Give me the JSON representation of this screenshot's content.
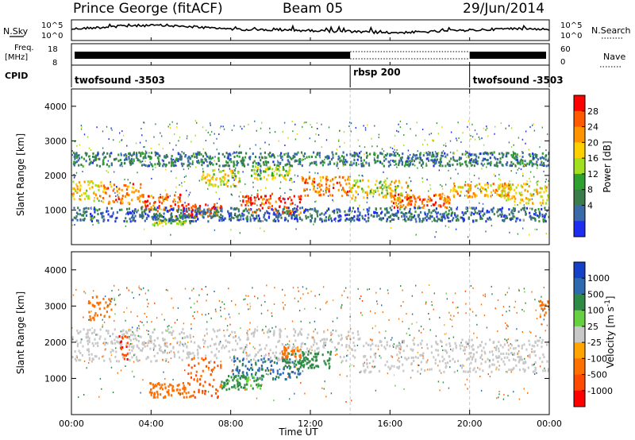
{
  "header": {
    "station": "Prince George (fitACF)",
    "beam": "Beam 05",
    "date": "29/Jun/2014"
  },
  "panels": {
    "nsky": {
      "label": "N.Sky",
      "left_ticks": [
        "10^5",
        "10^0"
      ],
      "right_ticks": [
        "10^5",
        "10^0"
      ],
      "right_label": "N.Search"
    },
    "freq": {
      "label_line1": "Freq.",
      "label_line2": "[MHz]",
      "left_ticks": [
        "18",
        "8"
      ],
      "right_ticks": [
        "60",
        "0"
      ],
      "right_label": "Nave"
    },
    "cpid": {
      "label": "CPID",
      "segments": [
        {
          "label": "twofsound -3503",
          "start": 0,
          "end": 14
        },
        {
          "label": "rbsp 200",
          "start": 14,
          "end": 20
        },
        {
          "label": "twofsound -3503",
          "start": 20,
          "end": 24
        }
      ]
    }
  },
  "colorbars": {
    "power": {
      "label": "Power [dB]",
      "ticks": [
        "28",
        "24",
        "20",
        "16",
        "12",
        "8",
        "4"
      ],
      "colors": [
        "#ff0000",
        "#ff5a00",
        "#ff9400",
        "#ffd000",
        "#a0e020",
        "#2ea030",
        "#3a7d4a",
        "#3a6aa8",
        "#1e2ef0"
      ]
    },
    "velocity": {
      "label": "Velocity [m s^-1]",
      "ticks": [
        "1000",
        "500",
        "100",
        "25",
        "-25",
        "-100",
        "-500",
        "-1000"
      ],
      "colors": [
        "#1540c8",
        "#2d6ab0",
        "#2f8a46",
        "#66d040",
        "#c8c8c8",
        "#ffa400",
        "#ff7000",
        "#ff4a00",
        "#ff0000"
      ]
    }
  },
  "chart_data": {
    "type": "heatmap",
    "xlabel": "Time UT",
    "x_ticks": [
      "00:00",
      "04:00",
      "08:00",
      "12:00",
      "16:00",
      "20:00",
      "00:00"
    ],
    "xlim": [
      0,
      24
    ],
    "ylabel": "Slant Range [km]",
    "y_ticks": [
      "1000",
      "2000",
      "3000",
      "4000"
    ],
    "ylim": [
      0,
      4500
    ],
    "mode_boundaries_hours": [
      14,
      20
    ],
    "power_bands": [
      {
        "t0": 0.0,
        "t1": 1.5,
        "r_lo": 1300,
        "r_hi": 1900,
        "db": 20
      },
      {
        "t0": 1.5,
        "t1": 3.5,
        "r_lo": 1200,
        "r_hi": 1800,
        "db": 24
      },
      {
        "t0": 3.5,
        "t1": 5.5,
        "r_lo": 1000,
        "r_hi": 1500,
        "db": 26
      },
      {
        "t0": 4.0,
        "t1": 6.0,
        "r_lo": 600,
        "r_hi": 900,
        "db": 14
      },
      {
        "t0": 5.5,
        "t1": 7.5,
        "r_lo": 800,
        "r_hi": 1200,
        "db": 28
      },
      {
        "t0": 6.5,
        "t1": 8.5,
        "r_lo": 1700,
        "r_hi": 2200,
        "db": 18
      },
      {
        "t0": 8.5,
        "t1": 11.5,
        "r_lo": 900,
        "r_hi": 1500,
        "db": 28
      },
      {
        "t0": 9.0,
        "t1": 11.0,
        "r_lo": 1900,
        "r_hi": 2300,
        "db": 16
      },
      {
        "t0": 11.5,
        "t1": 14.0,
        "r_lo": 1400,
        "r_hi": 2000,
        "db": 24
      },
      {
        "t0": 14.0,
        "t1": 17.0,
        "r_lo": 1300,
        "r_hi": 1900,
        "db": 18
      },
      {
        "t0": 16.0,
        "t1": 19.0,
        "r_lo": 1100,
        "r_hi": 1500,
        "db": 26
      },
      {
        "t0": 19.0,
        "t1": 22.0,
        "r_lo": 1400,
        "r_hi": 1800,
        "db": 22
      },
      {
        "t0": 21.5,
        "t1": 24.0,
        "r_lo": 1200,
        "r_hi": 1800,
        "db": 20
      },
      {
        "t0": 0.0,
        "t1": 24.0,
        "r_lo": 2300,
        "r_hi": 2700,
        "db": 8
      },
      {
        "t0": 0.0,
        "t1": 24.0,
        "r_lo": 700,
        "r_hi": 1100,
        "db": 6
      }
    ],
    "velocity_bands": [
      {
        "t0": 0.0,
        "t1": 14.5,
        "r_lo": 1500,
        "r_hi": 2400,
        "v": 0
      },
      {
        "t0": 14.5,
        "t1": 24.0,
        "r_lo": 1200,
        "r_hi": 2100,
        "v": 0
      },
      {
        "t0": 2.3,
        "t1": 2.8,
        "r_lo": 1500,
        "r_hi": 2200,
        "v": -800
      },
      {
        "t0": 0.8,
        "t1": 2.0,
        "r_lo": 2600,
        "r_hi": 3300,
        "v": -300
      },
      {
        "t0": 3.8,
        "t1": 6.0,
        "r_lo": 500,
        "r_hi": 900,
        "v": -300
      },
      {
        "t0": 5.8,
        "t1": 7.5,
        "r_lo": 500,
        "r_hi": 1600,
        "v": -600
      },
      {
        "t0": 8.0,
        "t1": 11.5,
        "r_lo": 1000,
        "r_hi": 1600,
        "v": 600
      },
      {
        "t0": 10.5,
        "t1": 13.0,
        "r_lo": 1300,
        "r_hi": 1800,
        "v": 300
      },
      {
        "t0": 10.5,
        "t1": 11.5,
        "r_lo": 1600,
        "r_hi": 1900,
        "v": -150
      },
      {
        "t0": 7.5,
        "t1": 9.5,
        "r_lo": 700,
        "r_hi": 1100,
        "v": 120
      },
      {
        "t0": 23.5,
        "t1": 24.0,
        "r_lo": 2700,
        "r_hi": 3200,
        "v": -300
      }
    ]
  }
}
